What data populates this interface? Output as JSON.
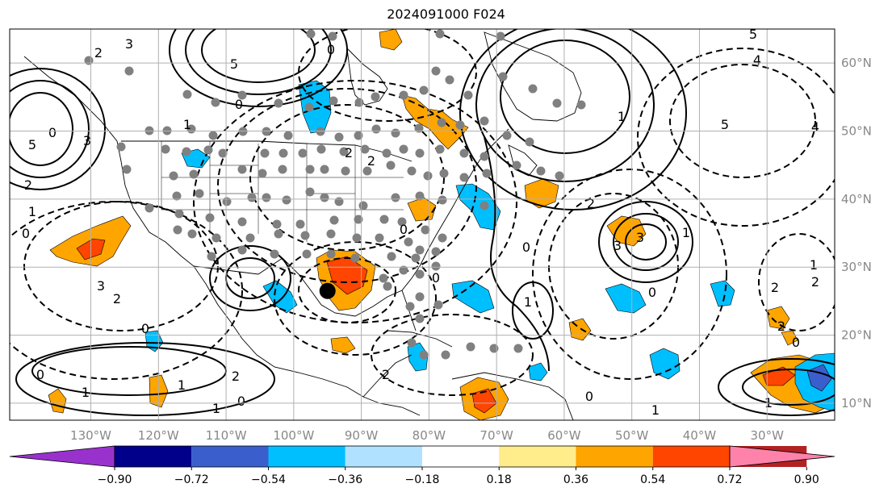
{
  "title": "2024091000 F024",
  "map": {
    "projection": "equirectangular",
    "lon_range": [
      -142,
      -20
    ],
    "lat_range": [
      7.5,
      65
    ],
    "grid": true,
    "lon_ticks": [
      {
        "lon": -130,
        "label": "130°W"
      },
      {
        "lon": -120,
        "label": "120°W"
      },
      {
        "lon": -110,
        "label": "110°W"
      },
      {
        "lon": -100,
        "label": "100°W"
      },
      {
        "lon": -90,
        "label": "90°W"
      },
      {
        "lon": -80,
        "label": "80°W"
      },
      {
        "lon": -70,
        "label": "70°W"
      },
      {
        "lon": -60,
        "label": "60°W"
      },
      {
        "lon": -50,
        "label": "50°W"
      },
      {
        "lon": -40,
        "label": "40°W"
      },
      {
        "lon": -30,
        "label": "30°W"
      }
    ],
    "lat_ticks": [
      {
        "lat": 60,
        "label": "60°N"
      },
      {
        "lat": 50,
        "label": "50°N"
      },
      {
        "lat": 40,
        "label": "40°N"
      },
      {
        "lat": 30,
        "label": "30°N"
      },
      {
        "lat": 20,
        "label": "20°N"
      },
      {
        "lat": 10,
        "label": "10°N"
      }
    ],
    "marker": {
      "lon": -95,
      "lat": 26.5,
      "color": "#000000"
    }
  },
  "colorbar": {
    "labels": [
      "−0.90",
      "−0.72",
      "−0.54",
      "−0.36",
      "−0.18",
      "0.18",
      "0.36",
      "0.54",
      "0.72",
      "0.90"
    ],
    "under_color": "#9932cc",
    "over_color": "#ff82ab",
    "colors": [
      "#8b2be2",
      "#00008b",
      "#3a5fcd",
      "#00bfff",
      "#b0e2ff",
      "#ffffff",
      "#ffec8b",
      "#ffa500",
      "#ff4500",
      "#b22222"
    ]
  },
  "contour_labels": [
    "0",
    "1",
    "2",
    "3",
    "4",
    "5"
  ]
}
